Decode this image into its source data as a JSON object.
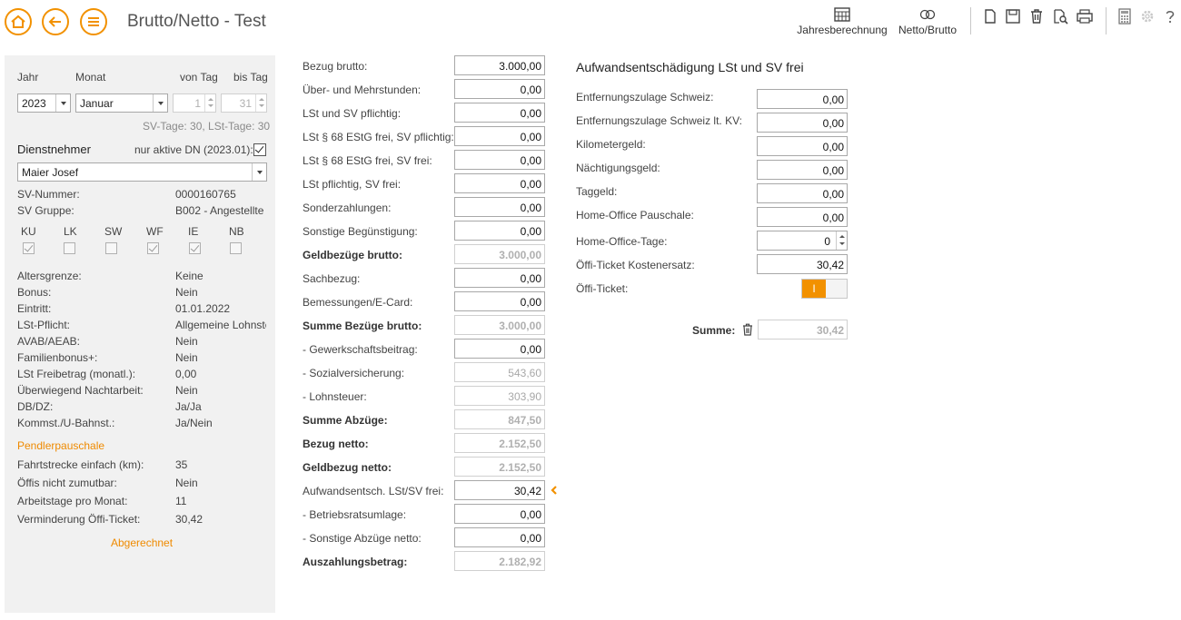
{
  "header": {
    "title": "Brutto/Netto - Test",
    "btn_jahresberechnung": "Jahresberechnung",
    "btn_netto_brutto": "Netto/Brutto",
    "accent_color": "#f29100"
  },
  "left": {
    "jahr_label": "Jahr",
    "monat_label": "Monat",
    "von_tag_label": "von Tag",
    "bis_tag_label": "bis Tag",
    "jahr_value": "2023",
    "monat_value": "Januar",
    "von_tag_value": "1",
    "bis_tag_value": "31",
    "tage_info": "SV-Tage: 30,  LSt-Tage: 30",
    "dn_label": "Dienstnehmer",
    "nur_aktive_label": "nur aktive DN (2023.01):",
    "dn_value": "Maier Josef",
    "sv_nummer_label": "SV-Nummer:",
    "sv_nummer_value": "0000160765",
    "sv_gruppe_label": "SV Gruppe:",
    "sv_gruppe_value": "B002 - Angestellte",
    "flags": [
      {
        "label": "KU",
        "checked": true
      },
      {
        "label": "LK",
        "checked": false
      },
      {
        "label": "SW",
        "checked": false
      },
      {
        "label": "WF",
        "checked": true
      },
      {
        "label": "IE",
        "checked": true
      },
      {
        "label": "NB",
        "checked": false
      }
    ],
    "info": [
      {
        "label": "Altersgrenze:",
        "value": "Keine"
      },
      {
        "label": "Bonus:",
        "value": "Nein"
      },
      {
        "label": "Eintritt:",
        "value": "01.01.2022"
      },
      {
        "label": "LSt-Pflicht:",
        "value": "Allgemeine Lohnste"
      },
      {
        "label": "AVAB/AEAB:",
        "value": "Nein"
      },
      {
        "label": "Familienbonus+:",
        "value": "Nein"
      },
      {
        "label": "LSt Freibetrag (monatl.):",
        "value": "0,00"
      },
      {
        "label": "Überwiegend Nachtarbeit:",
        "value": "Nein"
      },
      {
        "label": "DB/DZ:",
        "value": "Ja/Ja"
      },
      {
        "label": "Kommst./U-Bahnst.:",
        "value": "Ja/Nein"
      }
    ],
    "pendler_title": "Pendlerpauschale",
    "pendler": [
      {
        "label": "Fahrtstrecke einfach (km):",
        "value": "35"
      },
      {
        "label": "Öffis nicht zumutbar:",
        "value": "Nein"
      },
      {
        "label": "Arbeitstage pro Monat:",
        "value": "11"
      },
      {
        "label": "Verminderung Öffi-Ticket:",
        "value": "30,42"
      }
    ],
    "abgerechnet": "Abgerechnet"
  },
  "middle": [
    {
      "label": "Bezug brutto:",
      "value": "3.000,00"
    },
    {
      "label": "Über- und Mehrstunden:",
      "value": "0,00"
    },
    {
      "label": "LSt und SV pflichtig:",
      "value": "0,00"
    },
    {
      "label": "LSt § 68 EStG frei, SV pflichtig:",
      "value": "0,00"
    },
    {
      "label": "LSt § 68 EStG frei, SV frei:",
      "value": "0,00"
    },
    {
      "label": "LSt pflichtig, SV frei:",
      "value": "0,00"
    },
    {
      "label": "Sonderzahlungen:",
      "value": "0,00"
    },
    {
      "label": "Sonstige Begünstigung:",
      "value": "0,00"
    },
    {
      "label": "Geldbezüge brutto:",
      "value": "3.000,00"
    },
    {
      "label": "Sachbezug:",
      "value": "0,00"
    },
    {
      "label": "Bemessungen/E-Card:",
      "value": "0,00"
    },
    {
      "label": "Summe Bezüge brutto:",
      "value": "3.000,00"
    },
    {
      "label": "- Gewerkschaftsbeitrag:",
      "value": "0,00"
    },
    {
      "label": "- Sozialversicherung:",
      "value": "543,60"
    },
    {
      "label": "- Lohnsteuer:",
      "value": "303,90"
    },
    {
      "label": "Summe Abzüge:",
      "value": "847,50"
    },
    {
      "label": "Bezug netto:",
      "value": "2.152,50"
    },
    {
      "label": "Geldbezug netto:",
      "value": "2.152,50"
    },
    {
      "label": "Aufwandsentsch. LSt/SV frei:",
      "value": "30,42"
    },
    {
      "label": "- Betriebsratsumlage:",
      "value": "0,00"
    },
    {
      "label": "- Sonstige Abzüge netto:",
      "value": "0,00"
    },
    {
      "label": "Auszahlungsbetrag:",
      "value": "2.182,92"
    }
  ],
  "right": {
    "title": "Aufwandsentschädigung LSt und SV frei",
    "fields": [
      {
        "label": "Entfernungszulage Schweiz:",
        "value": "0,00"
      },
      {
        "label": "Entfernungszulage Schweiz lt. KV:",
        "value": "0,00"
      },
      {
        "label": "Kilometergeld:",
        "value": "0,00"
      },
      {
        "label": "Nächtigungsgeld:",
        "value": "0,00"
      },
      {
        "label": "Taggeld:",
        "value": "0,00"
      },
      {
        "label": "Home-Office Pauschale:",
        "value": "0,00"
      },
      {
        "label": "Home-Office-Tage:",
        "value": "0"
      },
      {
        "label": "Öffi-Ticket Kostenersatz:",
        "value": "30,42"
      }
    ],
    "oeffi_ticket_label": "Öffi-Ticket:",
    "toggle_on_text": "I",
    "summe_label": "Summe:",
    "summe_value": "30,42"
  }
}
